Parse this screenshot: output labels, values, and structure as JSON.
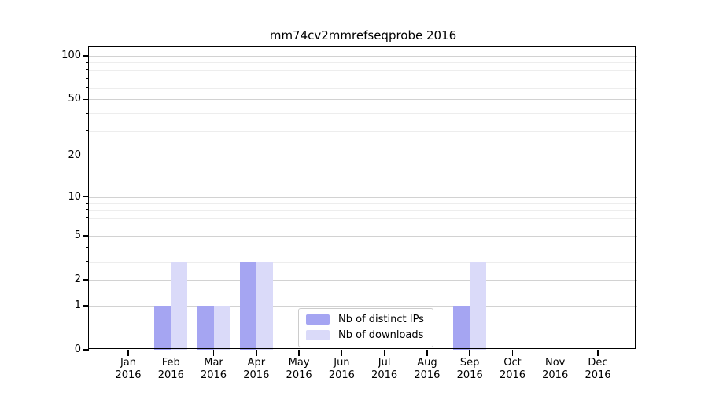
{
  "chart_data": {
    "type": "bar",
    "title": "mm74cv2mmrefseqprobe 2016",
    "scale": "log1p",
    "grid": true,
    "legend_position": "inside-bottom-center",
    "categories": [
      "Jan",
      "Feb",
      "Mar",
      "Apr",
      "May",
      "Jun",
      "Jul",
      "Aug",
      "Sep",
      "Oct",
      "Nov",
      "Dec"
    ],
    "x_year_label": "2016",
    "series": [
      {
        "name": "Nb of distinct IPs",
        "color": "#a5a5f2",
        "values": [
          0,
          1,
          1,
          3,
          0,
          0,
          0,
          0,
          1,
          0,
          0,
          0
        ]
      },
      {
        "name": "Nb of downloads",
        "color": "#dadaf9",
        "values": [
          0,
          3,
          1,
          3,
          0,
          0,
          0,
          0,
          3,
          0,
          0,
          0
        ]
      }
    ],
    "y_ticks": [
      0,
      1,
      2,
      5,
      10,
      20,
      50,
      100
    ],
    "y_minor_ticks": [
      3,
      4,
      6,
      7,
      8,
      9,
      30,
      40,
      60,
      70,
      80,
      90
    ],
    "ylim": [
      0,
      115
    ],
    "xlabel": "",
    "ylabel": ""
  }
}
